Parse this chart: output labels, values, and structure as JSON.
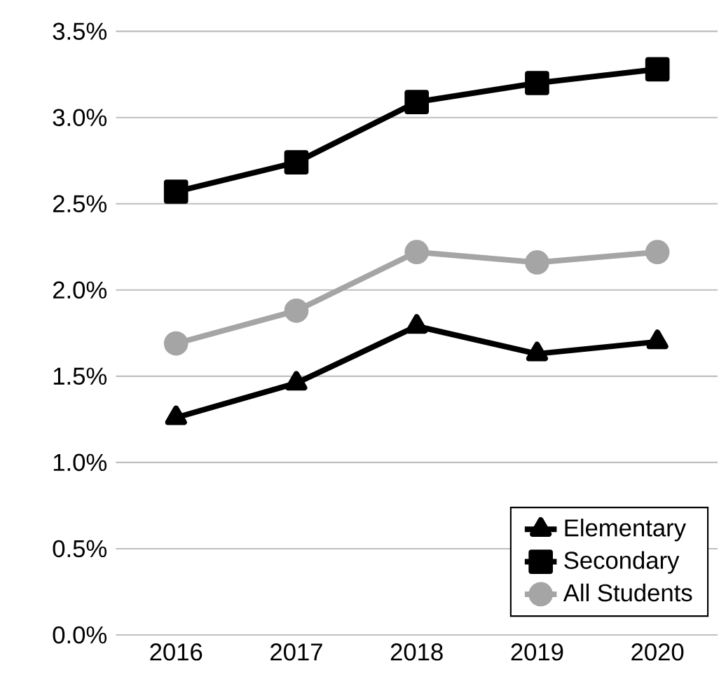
{
  "chart_data": {
    "type": "line",
    "categories": [
      "2016",
      "2017",
      "2018",
      "2019",
      "2020"
    ],
    "series": [
      {
        "name": "Elementary",
        "color": "#000000",
        "marker": "triangle",
        "values": [
          1.26,
          1.46,
          1.79,
          1.63,
          1.7
        ]
      },
      {
        "name": "Secondary",
        "color": "#000000",
        "marker": "square",
        "values": [
          2.57,
          2.74,
          3.09,
          3.2,
          3.28
        ]
      },
      {
        "name": "All Students",
        "color": "#a5a5a5",
        "marker": "circle",
        "values": [
          1.69,
          1.88,
          2.22,
          2.16,
          2.22
        ]
      }
    ],
    "ylim": [
      0,
      3.5
    ],
    "yticks": [
      {
        "value": 0,
        "label": "0.0%"
      },
      {
        "value": 0.5,
        "label": "0.5%"
      },
      {
        "value": 1.0,
        "label": "1.0%"
      },
      {
        "value": 1.5,
        "label": "1.5%"
      },
      {
        "value": 2.0,
        "label": "2.0%"
      },
      {
        "value": 2.5,
        "label": "2.5%"
      },
      {
        "value": 3.0,
        "label": "3.0%"
      },
      {
        "value": 3.5,
        "label": "3.5%"
      }
    ],
    "grid": "y",
    "legend": "bottom right",
    "line_style": "solid"
  }
}
